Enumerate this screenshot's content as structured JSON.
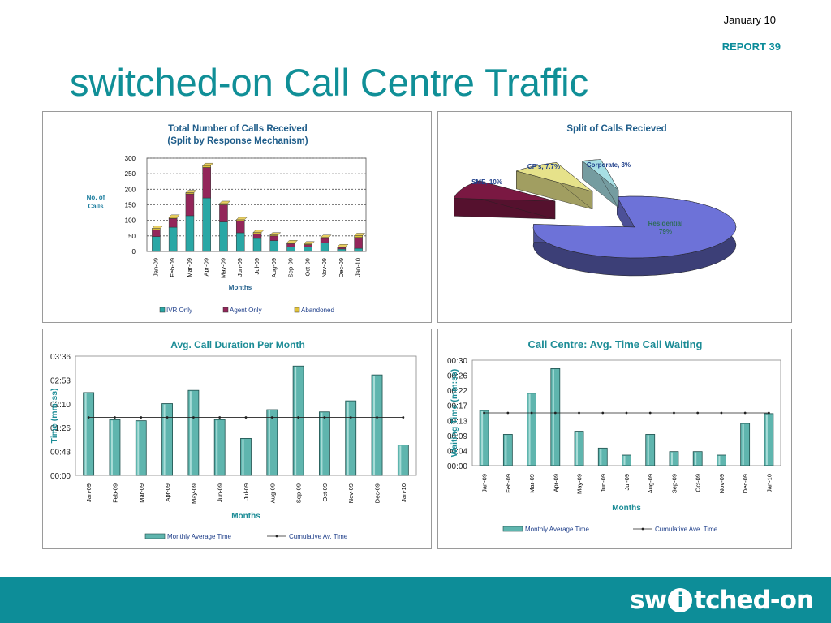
{
  "header": {
    "date": "January 10",
    "report": "REPORT 39",
    "title": "switched-on Call Centre Traffic"
  },
  "footer": {
    "logo_text": "switched-on",
    "logo_part1": "sw",
    "logo_i": "i",
    "logo_part2": "tched-on"
  },
  "colors": {
    "teal": "#2aa7a5",
    "maroon": "#93265a",
    "gold": "#e2c33a",
    "title_teal": "#108f97"
  },
  "chart_data": [
    {
      "type": "bar",
      "stacked": true,
      "title": "Total Number of Calls Received",
      "subtitle": "(Split by Response Mechanism)",
      "xlabel": "Months",
      "ylabel": "No. of Calls",
      "ylim": [
        0,
        300
      ],
      "yticks": [
        "0",
        "50",
        "100",
        "150",
        "200",
        "250",
        "300"
      ],
      "categories": [
        "Jan-09",
        "Feb-09",
        "Mar-09",
        "Apr-09",
        "May-09",
        "Jun-09",
        "Jul-09",
        "Aug-09",
        "Sep-09",
        "Oct-09",
        "Nov-09",
        "Dec-09",
        "Jan-10"
      ],
      "series": [
        {
          "name": "IVR Only",
          "values": [
            48,
            78,
            115,
            172,
            95,
            60,
            42,
            35,
            15,
            15,
            28,
            8,
            10
          ]
        },
        {
          "name": "Agent Only",
          "values": [
            22,
            28,
            70,
            98,
            55,
            38,
            15,
            15,
            10,
            7,
            14,
            5,
            35
          ]
        },
        {
          "name": "Abandoned",
          "values": [
            4,
            4,
            4,
            6,
            4,
            4,
            4,
            3,
            3,
            2,
            3,
            2,
            6
          ]
        }
      ],
      "grid": true,
      "legend": "bottom"
    },
    {
      "type": "pie",
      "style": "3d-exploded",
      "title": "Split of Calls Recieved",
      "slices": [
        {
          "label": "Residential",
          "value": 79.3,
          "display": "Residential, 79%"
        },
        {
          "label": "SME",
          "value": 10,
          "display": "SME, 10%"
        },
        {
          "label": "CP's",
          "value": 7.7,
          "display": "CP's, 7.7%"
        },
        {
          "label": "Corporate",
          "value": 3,
          "display": "Corporate, 3%"
        }
      ]
    },
    {
      "type": "bar",
      "title": "Avg. Call Duration Per Month",
      "xlabel": "Months",
      "ylabel": "Time (mm:ss)",
      "ylim": [
        0,
        216
      ],
      "yticks": [
        "00:00",
        "00:43",
        "01:26",
        "02:10",
        "02:53",
        "03:36"
      ],
      "categories": [
        "Jan-09",
        "Feb-09",
        "Mar-09",
        "Apr-09",
        "May-09",
        "Jun-09",
        "Jul-09",
        "Aug-09",
        "Sep-09",
        "Oct-09",
        "Nov-09",
        "Dec-09",
        "Jan-10"
      ],
      "series": [
        {
          "name": "Monthly Average Time",
          "values": [
            150,
            101,
            99,
            130,
            154,
            101,
            67,
            119,
            198,
            115,
            135,
            182,
            55
          ]
        },
        {
          "name": "Cumulative Av. Time",
          "values": [
            105,
            105,
            105,
            105,
            105,
            105,
            105,
            105,
            105,
            105,
            105,
            105,
            105
          ]
        }
      ],
      "legend": "bottom"
    },
    {
      "type": "bar",
      "title": "Call Centre: Avg. Time Call Waiting",
      "xlabel": "Months",
      "ylabel": "Waiting Time (mm:ss)",
      "ylim": [
        0,
        30
      ],
      "yticks": [
        "00:00",
        "00:04",
        "00:09",
        "00:13",
        "00:17",
        "00:22",
        "00:26",
        "00:30"
      ],
      "categories": [
        "Jan-09",
        "Feb-09",
        "Mar-09",
        "Apr-09",
        "May-09",
        "Jun-09",
        "Jul-09",
        "Aug-09",
        "Sep-09",
        "Oct-09",
        "Nov-09",
        "Dec-09",
        "Jan-10"
      ],
      "series": [
        {
          "name": "Monthly Average Time",
          "values": [
            15.7,
            8.9,
            20.6,
            27.6,
            9.8,
            5,
            3,
            8.9,
            4,
            4,
            3,
            12,
            14.8
          ]
        },
        {
          "name": "Cumulative Ave. Time",
          "values": [
            15,
            15,
            15,
            15,
            15,
            15,
            15,
            15,
            15,
            15,
            15,
            15,
            15
          ]
        }
      ],
      "legend": "bottom"
    }
  ]
}
